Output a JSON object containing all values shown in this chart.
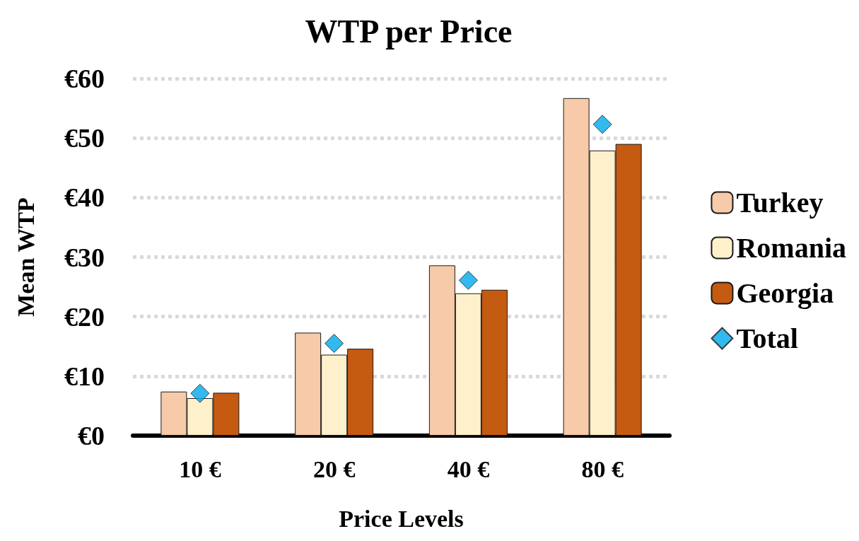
{
  "chart_data": {
    "type": "bar",
    "title": "WTP per Price",
    "xlabel": "Price Levels",
    "ylabel": "Mean WTP",
    "categories": [
      "10 €",
      "20 €",
      "40 €",
      "80 €"
    ],
    "series": [
      {
        "name": "Turkey",
        "color": "#f7caa9",
        "values": [
          7.4,
          17.3,
          28.6,
          56.7
        ]
      },
      {
        "name": "Romania",
        "color": "#fff0cc",
        "values": [
          6.3,
          13.6,
          23.9,
          47.9
        ]
      },
      {
        "name": "Georgia",
        "color": "#c55a11",
        "values": [
          7.2,
          14.6,
          24.5,
          49.0
        ]
      },
      {
        "name": "Total",
        "type": "scatter",
        "marker": "diamond",
        "color": "#00a8e8",
        "x": [
          "10 €",
          "20 €",
          "40 €",
          "80 €"
        ],
        "values": [
          7.1,
          15.5,
          26.1,
          52.3
        ]
      }
    ],
    "ylim": [
      0,
      60
    ],
    "yticks": [
      {
        "value": 0,
        "label": "€0"
      },
      {
        "value": 10,
        "label": "€10"
      },
      {
        "value": 20,
        "label": "€20"
      },
      {
        "value": 30,
        "label": "€30"
      },
      {
        "value": 40,
        "label": "€40"
      },
      {
        "value": 50,
        "label": "€50"
      },
      {
        "value": 60,
        "label": "€60"
      }
    ],
    "grid": "y",
    "legend": "right"
  }
}
